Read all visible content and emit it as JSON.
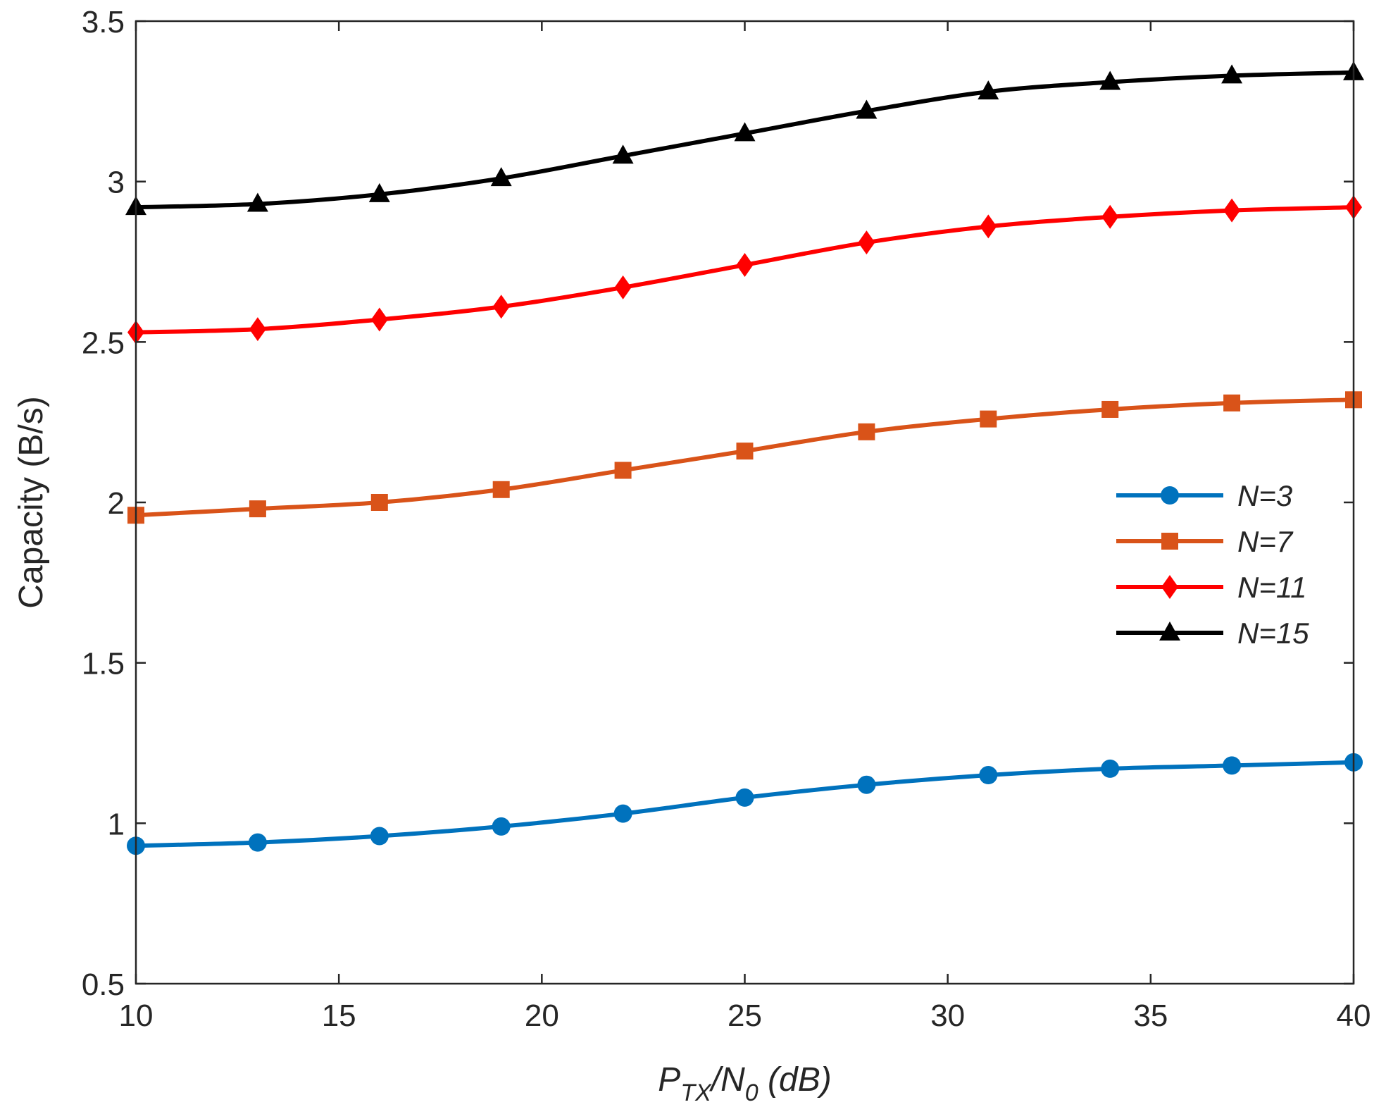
{
  "chart_data": {
    "type": "line",
    "title": "",
    "xlabel": "P_TX/N_0 (dB)",
    "xlabel_parts": {
      "base1": "P",
      "sub1": "TX",
      "sep": "/N",
      "sub2": "0",
      "tail": " (dB)"
    },
    "ylabel": "Capacity (B/s)",
    "xlim": [
      10,
      40
    ],
    "ylim": [
      0.5,
      3.5
    ],
    "xticks": [
      10,
      15,
      20,
      25,
      30,
      35,
      40
    ],
    "xtick_labels": [
      "10",
      "15",
      "20",
      "25",
      "30",
      "35",
      "40"
    ],
    "yticks": [
      0.5,
      1,
      1.5,
      2,
      2.5,
      3,
      3.5
    ],
    "ytick_labels": [
      "0.5",
      "1",
      "1.5",
      "2",
      "2.5",
      "3",
      "3.5"
    ],
    "grid": false,
    "legend_position": "right",
    "x": [
      10,
      13,
      16,
      19,
      22,
      25,
      28,
      31,
      34,
      37,
      40
    ],
    "series": [
      {
        "name": "N=3",
        "color": "#0072BD",
        "marker": "circle",
        "values": [
          0.93,
          0.94,
          0.96,
          0.99,
          1.03,
          1.08,
          1.12,
          1.15,
          1.17,
          1.18,
          1.19
        ]
      },
      {
        "name": "N=7",
        "color": "#D95319",
        "marker": "square",
        "values": [
          1.96,
          1.98,
          2.0,
          2.04,
          2.1,
          2.16,
          2.22,
          2.26,
          2.29,
          2.31,
          2.32
        ]
      },
      {
        "name": "N=11",
        "color": "#FF0000",
        "marker": "diamond",
        "values": [
          2.53,
          2.54,
          2.57,
          2.61,
          2.67,
          2.74,
          2.81,
          2.86,
          2.89,
          2.91,
          2.92
        ]
      },
      {
        "name": "N=15",
        "color": "#000000",
        "marker": "triangle",
        "values": [
          2.92,
          2.93,
          2.96,
          3.01,
          3.08,
          3.15,
          3.22,
          3.28,
          3.31,
          3.33,
          3.34
        ]
      }
    ]
  }
}
